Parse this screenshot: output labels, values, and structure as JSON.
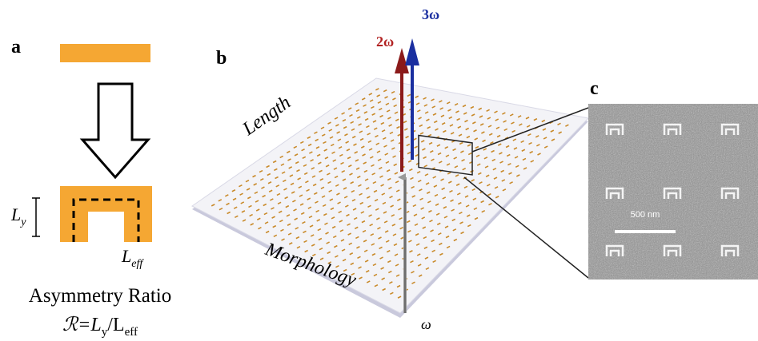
{
  "panel_a": {
    "label": "a",
    "ly": {
      "main": "L",
      "sub": "y"
    },
    "leff": {
      "main": "L",
      "sub": "eff"
    },
    "title": "Asymmetry Ratio",
    "formula": [
      "ℛ=L",
      "y",
      "/L",
      "eff"
    ]
  },
  "panel_b": {
    "label": "b",
    "axis_length": "Length",
    "axis_morphology": "Morphology",
    "beam_in": "ω",
    "beam_2": "2ω",
    "beam_3": "3ω"
  },
  "panel_c": {
    "label": "c",
    "scale_bar": "500 nm"
  }
}
